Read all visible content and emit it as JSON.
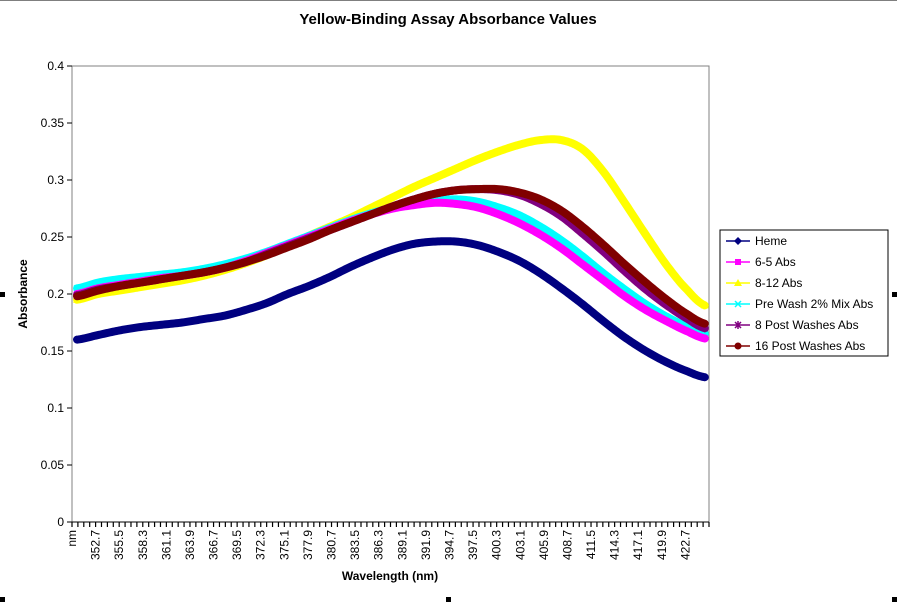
{
  "chart_data": {
    "type": "line",
    "title": "Yellow-Binding Assay Absorbance Values",
    "xlabel": "Wavelength (nm)",
    "ylabel": "Absorbance",
    "ylim": [
      0,
      0.4
    ],
    "yticks": [
      "0",
      "0.05",
      "0.1",
      "0.15",
      "0.2",
      "0.25",
      "0.3",
      "0.35",
      "0.4"
    ],
    "ytick_values": [
      0,
      0.05,
      0.1,
      0.15,
      0.2,
      0.25,
      0.3,
      0.35,
      0.4
    ],
    "xlim": [
      349.9,
      425.5
    ],
    "xticks": [
      "nm",
      "352.7",
      "355.5",
      "358.3",
      "361.1",
      "363.9",
      "366.7",
      "369.5",
      "372.3",
      "375.1",
      "377.9",
      "380.7",
      "383.5",
      "386.3",
      "389.1",
      "391.9",
      "394.7",
      "397.5",
      "400.3",
      "403.1",
      "405.9",
      "408.7",
      "411.5",
      "414.3",
      "417.1",
      "419.9",
      "422.7"
    ],
    "xtick_values": [
      349.9,
      352.7,
      355.5,
      358.3,
      361.1,
      363.9,
      366.7,
      369.5,
      372.3,
      375.1,
      377.9,
      380.7,
      383.5,
      386.3,
      389.1,
      391.9,
      394.7,
      397.5,
      400.3,
      403.1,
      405.9,
      408.7,
      411.5,
      414.3,
      417.1,
      419.9,
      422.7
    ],
    "grid": "none",
    "legend_position": "right",
    "x": [
      350.5,
      353,
      355.5,
      358,
      360.5,
      363,
      365.5,
      368,
      370.5,
      373,
      375.5,
      378,
      380.5,
      383,
      385.5,
      388,
      390.5,
      393,
      395.5,
      398,
      400.5,
      403,
      405.5,
      408,
      410.5,
      413,
      415.5,
      418,
      420.5,
      423,
      425
    ],
    "series": [
      {
        "name": "Heme",
        "color": "#000080",
        "marker": "diamond",
        "values": [
          0.16,
          0.164,
          0.168,
          0.171,
          0.173,
          0.175,
          0.178,
          0.181,
          0.186,
          0.192,
          0.2,
          0.207,
          0.215,
          0.224,
          0.232,
          0.239,
          0.244,
          0.246,
          0.246,
          0.243,
          0.237,
          0.229,
          0.218,
          0.205,
          0.191,
          0.176,
          0.162,
          0.15,
          0.14,
          0.132,
          0.127
        ]
      },
      {
        "name": "6-5 Abs",
        "color": "#ff00ff",
        "marker": "square",
        "values": [
          0.2,
          0.205,
          0.208,
          0.211,
          0.214,
          0.216,
          0.219,
          0.223,
          0.229,
          0.236,
          0.243,
          0.25,
          0.257,
          0.264,
          0.27,
          0.275,
          0.278,
          0.28,
          0.279,
          0.276,
          0.27,
          0.262,
          0.252,
          0.24,
          0.226,
          0.212,
          0.198,
          0.186,
          0.176,
          0.167,
          0.161
        ]
      },
      {
        "name": "8-12 Abs",
        "color": "#ffff00",
        "marker": "triangle",
        "values": [
          0.195,
          0.2,
          0.203,
          0.206,
          0.209,
          0.212,
          0.216,
          0.221,
          0.227,
          0.234,
          0.242,
          0.251,
          0.259,
          0.267,
          0.276,
          0.285,
          0.294,
          0.302,
          0.31,
          0.318,
          0.325,
          0.331,
          0.335,
          0.335,
          0.327,
          0.307,
          0.28,
          0.252,
          0.225,
          0.203,
          0.19
        ]
      },
      {
        "name": "Pre Wash 2% Mix Abs",
        "color": "#00ffff",
        "marker": "x",
        "values": [
          0.205,
          0.21,
          0.213,
          0.215,
          0.217,
          0.219,
          0.222,
          0.226,
          0.231,
          0.237,
          0.244,
          0.251,
          0.258,
          0.265,
          0.271,
          0.276,
          0.28,
          0.282,
          0.283,
          0.281,
          0.276,
          0.269,
          0.259,
          0.247,
          0.233,
          0.218,
          0.204,
          0.191,
          0.18,
          0.171,
          0.165
        ]
      },
      {
        "name": "8 Post Washes Abs",
        "color": "#800080",
        "marker": "star",
        "values": [
          0.199,
          0.204,
          0.207,
          0.21,
          0.213,
          0.216,
          0.219,
          0.223,
          0.228,
          0.235,
          0.242,
          0.249,
          0.256,
          0.263,
          0.27,
          0.277,
          0.283,
          0.288,
          0.291,
          0.292,
          0.291,
          0.287,
          0.279,
          0.268,
          0.253,
          0.237,
          0.22,
          0.204,
          0.19,
          0.178,
          0.17
        ]
      },
      {
        "name": "16 Post Washes Abs",
        "color": "#800000",
        "marker": "circle",
        "values": [
          0.198,
          0.203,
          0.207,
          0.21,
          0.213,
          0.216,
          0.219,
          0.223,
          0.228,
          0.234,
          0.241,
          0.248,
          0.256,
          0.263,
          0.27,
          0.277,
          0.283,
          0.288,
          0.291,
          0.292,
          0.292,
          0.289,
          0.283,
          0.273,
          0.259,
          0.243,
          0.226,
          0.21,
          0.195,
          0.182,
          0.174
        ]
      }
    ]
  }
}
